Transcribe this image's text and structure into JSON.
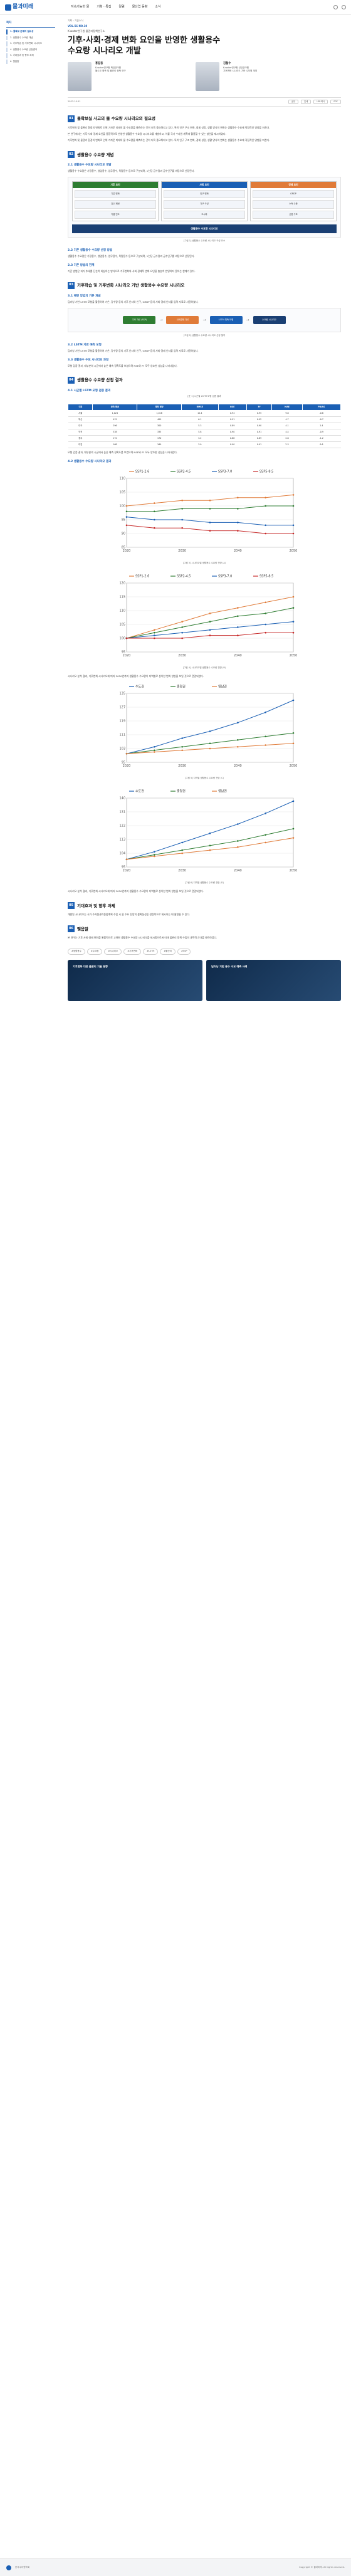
{
  "header": {
    "logo": "물과미래",
    "nav": [
      "지속가능한 물",
      "기획 · 특집",
      "칼럼",
      "물산업 동향",
      "소식"
    ]
  },
  "sidebar": {
    "title": "목차",
    "items": [
      "1. 물확보 문제의 필요성",
      "2. 생활용수 수요량 개념",
      "3. 기후학습 및 기후변화 시나리오",
      "4. 생활용수 수요량 산정결과",
      "5. 기대효과 및 향후 과제",
      "6. 맺음말"
    ]
  },
  "article": {
    "crumbs": "기획 › 기술소식",
    "issue": "VOL.56 NO.10",
    "kicker": "K-water연구원 물관리정책연구소",
    "title_line1": "기후·사회·경제 변화 요인을 반영한 생활용수",
    "title_line2": "수요량 시나리오 개발",
    "authors": [
      {
        "name": "홍길동",
        "role": "K-water연구원 책임연구원",
        "desc": "물수요 예측 및 물관리 정책 연구"
      },
      {
        "name": "김철수",
        "role": "K-water연구원 선임연구원",
        "desc": "기후변화 시나리오 기반 수자원 계획"
      }
    ],
    "date": "2023.10.01",
    "tools": [
      "공유",
      "인쇄",
      "URL복사",
      "PDF"
    ]
  },
  "sections": [
    {
      "num": "01",
      "title": "물확보실 사고의 물 수요량 시나리오의 필요성"
    },
    {
      "num": "02",
      "title": "생활용수 수요량 개념"
    },
    {
      "num": "03",
      "title": "기후학습 및 기후변화 시나리오 기반 생활용수 수요량 시나리오"
    },
    {
      "num": "04",
      "title": "생활용수 수요량 산정 결과"
    },
    {
      "num": "05",
      "title": "기대효과 및 향후 과제"
    },
    {
      "num": "06",
      "title": "맺음말"
    }
  ],
  "subs": {
    "s2_1": "2.1 생활용수 수요량 시나리오 개발",
    "s2_2": "2.2 기존 생활용수 수요량 산정 방법",
    "s2_3": "2.3 기존 방법의 한계",
    "s3_1": "3.1 패턴 방법의 기본 개념",
    "s3_2": "3.2 LSTM 기반 예측 모형",
    "s3_3": "3.3 생활용수 수요 시나리오 과정",
    "s4_1": "4.1 시군별 LSTM 모형 검증 결과",
    "s4_2": "4.2 생활용수 수요량 시나리오 결과"
  },
  "paragraphs": {
    "p1": "기후변화 및 물관리 환경의 변화로 인해 가까운 미래의 물 수요량을 예측하는 것이 더욱 중요해지고 있다. 특히 인구 구조 변화, 경제 성장, 생활 양식의 변화는 생활용수 수요에 직접적인 영향을 미친다.",
    "p2": "본 연구에서는 기후·사회·경제 요인을 종합적으로 반영한 생활용수 수요량 시나리오를 개발하고, 이를 국가 수자원 계획에 활용할 수 있는 방안을 제시하였다.",
    "p3": "생활용수 수요량은 가정용수, 영업용수, 업무용수, 욕탕용수 등으로 구분되며, 1인당 급수량과 급수인구를 바탕으로 산정된다.",
    "p4": "기존 방법은 과거 추세를 단순히 외삽하는 방식으로 기후변화와 사회·경제적 변화 요인을 충분히 반영하지 못하는 한계가 있다.",
    "p5": "딥러닝 기반 LSTM 모형을 활용하여 기온, 강수량 등의 기후 인자와 인구, GRDP 등의 사회·경제 인자를 입력 자료로 사용하였다.",
    "p6": "모형 검증 결과, 대부분의 시군에서 높은 예측 정확도를 보였으며 NSE와 R² 모두 양호한 성능을 나타내었다.",
    "p7": "시나리오 분석 결과, 기후변화 시나리오에 따라 2050년까지 생활용수 수요량이 지역별로 상이한 변화 양상을 보일 것으로 전망되었다.",
    "p8": "개발된 시나리오는 국가 수자원관리종합계획 수립 시 물 수요 전망의 불확실성을 정량적으로 제시하는 데 활용될 수 있다.",
    "p9": "본 연구는 기후·사회·경제 변화를 통합적으로 고려한 생활용수 수요량 시나리오를 제시함으로써 미래 물관리 정책 수립의 과학적 근거를 마련하였다."
  },
  "fig1": {
    "cols": [
      {
        "head": "기후 요인",
        "items": [
          "기온 변화",
          "강수 패턴",
          "가뭄 빈도"
        ]
      },
      {
        "head": "사회 요인",
        "items": [
          "인구 변화",
          "가구 구성",
          "도시화"
        ]
      },
      {
        "head": "경제 요인",
        "items": [
          "GRDP",
          "소득 수준",
          "산업 구조"
        ]
      }
    ],
    "foot": "생활용수 수요량 시나리오",
    "caption": "[그림 1] 생활용수 수요량 시나리오 구성 요소"
  },
  "fig2": {
    "nodes": [
      "기후 자료 (SSP)",
      "사회경제 자료",
      "LSTM 예측 모형",
      "수요량 시나리오"
    ],
    "caption": "[그림 2] 생활용수 수요량 시나리오 산정 절차"
  },
  "table1": {
    "caption": "[표 1] 시군별 LSTM 모형 검증 결과",
    "headers": [
      "구분",
      "관측 평균",
      "예측 평균",
      "RMSE",
      "NSE",
      "R²",
      "MAE",
      "PBIAS"
    ],
    "rows": [
      [
        "서울",
        "1,024",
        "1,018",
        "12.4",
        "0.94",
        "0.95",
        "9.8",
        "-0.6"
      ],
      [
        "부산",
        "412",
        "409",
        "6.1",
        "0.91",
        "0.92",
        "4.7",
        "-0.7"
      ],
      [
        "대구",
        "296",
        "300",
        "5.3",
        "0.89",
        "0.90",
        "4.1",
        "1.4"
      ],
      [
        "인천",
        "338",
        "335",
        "5.8",
        "0.90",
        "0.91",
        "4.4",
        "-0.9"
      ],
      [
        "광주",
        "172",
        "170",
        "3.2",
        "0.88",
        "0.89",
        "2.6",
        "-1.2"
      ],
      [
        "대전",
        "168",
        "169",
        "3.0",
        "0.90",
        "0.91",
        "2.3",
        "0.6"
      ]
    ]
  },
  "chart_data": [
    {
      "type": "line",
      "title": "",
      "caption": "[그림 3] 시나리오별 생활용수 수요량 전망 (A)",
      "x": [
        2020,
        2025,
        2030,
        2035,
        2040,
        2045,
        2050
      ],
      "series": [
        {
          "name": "SSP1-2.6",
          "values": [
            100,
            101,
            102,
            102,
            103,
            103,
            104
          ]
        },
        {
          "name": "SSP2-4.5",
          "values": [
            98,
            98,
            99,
            99,
            99,
            100,
            100
          ]
        },
        {
          "name": "SSP3-7.0",
          "values": [
            96,
            95,
            95,
            94,
            94,
            93,
            93
          ]
        },
        {
          "name": "SSP5-8.5",
          "values": [
            93,
            92,
            92,
            91,
            91,
            90,
            90
          ]
        }
      ],
      "colors": [
        "#e07b39",
        "#2e7d32",
        "#1a5fb4",
        "#c62828"
      ],
      "ylim": [
        85,
        110
      ]
    },
    {
      "type": "line",
      "title": "",
      "caption": "[그림 4] 시나리오별 생활용수 수요량 전망 (B)",
      "x": [
        2020,
        2025,
        2030,
        2035,
        2040,
        2045,
        2050
      ],
      "series": [
        {
          "name": "SSP1-2.6",
          "values": [
            100,
            103,
            106,
            109,
            111,
            113,
            115
          ]
        },
        {
          "name": "SSP2-4.5",
          "values": [
            100,
            102,
            104,
            106,
            108,
            109,
            111
          ]
        },
        {
          "name": "SSP3-7.0",
          "values": [
            100,
            101,
            102,
            103,
            104,
            105,
            106
          ]
        },
        {
          "name": "SSP5-8.5",
          "values": [
            100,
            100,
            100,
            101,
            101,
            102,
            102
          ]
        }
      ],
      "colors": [
        "#e07b39",
        "#2e7d32",
        "#1a5fb4",
        "#c62828"
      ],
      "ylim": [
        95,
        120
      ]
    },
    {
      "type": "line",
      "title": "",
      "caption": "[그림 5] 지역별 생활용수 수요량 전망 (C)",
      "x": [
        2020,
        2025,
        2030,
        2035,
        2040,
        2045,
        2050
      ],
      "series": [
        {
          "name": "수도권",
          "values": [
            100,
            104,
            109,
            113,
            118,
            124,
            131
          ]
        },
        {
          "name": "충청권",
          "values": [
            100,
            102,
            104,
            106,
            108,
            110,
            112
          ]
        },
        {
          "name": "영남권",
          "values": [
            100,
            101,
            102,
            103,
            104,
            105,
            106
          ]
        }
      ],
      "colors": [
        "#1a5fb4",
        "#2e7d32",
        "#e07b39"
      ],
      "ylim": [
        95,
        135
      ]
    },
    {
      "type": "line",
      "title": "",
      "caption": "[그림 6] 지역별 생활용수 수요량 전망 (D)",
      "x": [
        2020,
        2025,
        2030,
        2035,
        2040,
        2045,
        2050
      ],
      "series": [
        {
          "name": "수도권",
          "values": [
            100,
            105,
            111,
            117,
            123,
            130,
            138
          ]
        },
        {
          "name": "충청권",
          "values": [
            100,
            103,
            106,
            109,
            112,
            116,
            120
          ]
        },
        {
          "name": "영남권",
          "values": [
            100,
            102,
            104,
            106,
            108,
            111,
            114
          ]
        }
      ],
      "colors": [
        "#1a5fb4",
        "#2e7d32",
        "#e07b39"
      ],
      "ylim": [
        95,
        140
      ]
    }
  ],
  "tags": [
    "#생활용수",
    "#수요량",
    "#시나리오",
    "#기후변화",
    "#LSTM",
    "#물관리",
    "#SSP"
  ],
  "related": [
    "기후변화 대응 물관리 기술 동향",
    "딥러닝 기반 용수 수요 예측 사례"
  ],
  "footer": {
    "org": "한국수자원학회",
    "copy": "Copyright © 물과미래. All rights reserved."
  },
  "colors": {
    "accent": "#1a5fb4",
    "dark": "#1a3f73"
  }
}
